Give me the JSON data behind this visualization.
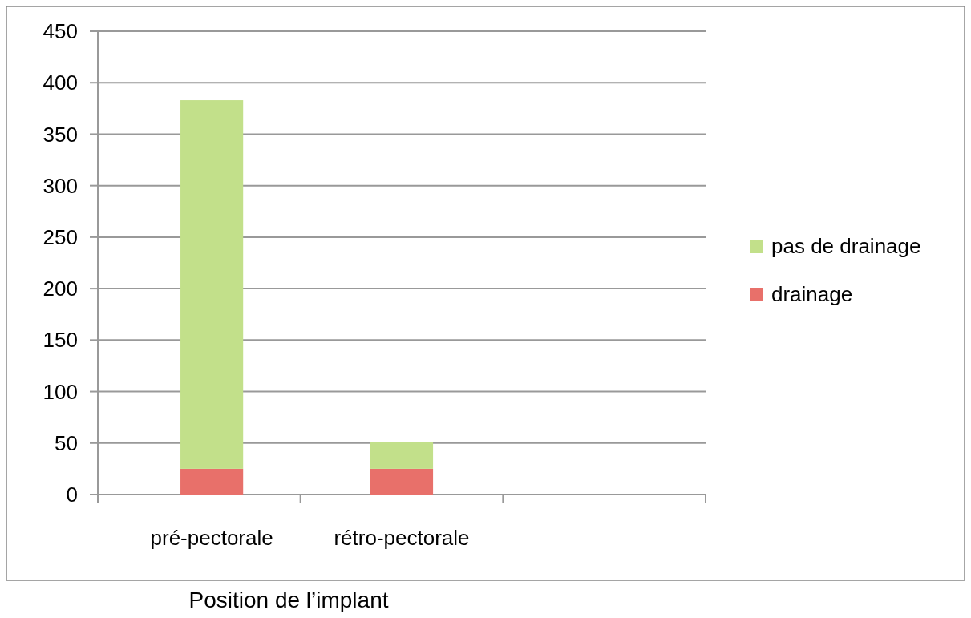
{
  "chart_data": {
    "type": "bar",
    "stacked": true,
    "xlabel": "Position de l’implant",
    "categories": [
      "pré-pectorale",
      "rétro-pectorale",
      null
    ],
    "series": [
      {
        "name": "drainage",
        "color": "#e8706a",
        "values": [
          25,
          25,
          null
        ]
      },
      {
        "name": "pas de drainage",
        "color": "#c2e08a",
        "values": [
          358,
          26,
          null
        ]
      }
    ],
    "ylim": [
      0,
      450
    ],
    "yticks": [
      0,
      50,
      100,
      150,
      200,
      250,
      300,
      350,
      400,
      450
    ],
    "grid": "y",
    "legend": "right"
  }
}
